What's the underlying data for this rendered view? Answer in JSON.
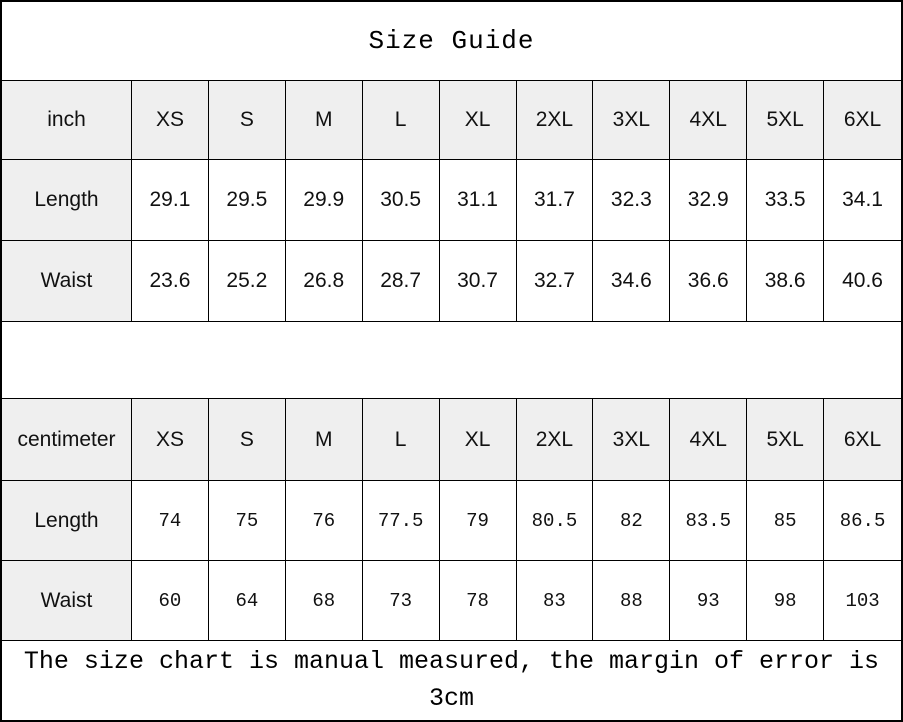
{
  "title": "Size Guide",
  "footer": {
    "text": "The size chart is manual measured, the margin of error is 3cm"
  },
  "colors": {
    "cell_shade": "#efefef",
    "border": "#000000",
    "background": "#ffffff",
    "text": "#111111"
  },
  "chart_data": [
    {
      "type": "table",
      "title": "Size Guide",
      "unit": "inch",
      "columns": [
        "inch",
        "XS",
        "S",
        "M",
        "L",
        "XL",
        "2XL",
        "3XL",
        "4XL",
        "5XL",
        "6XL"
      ],
      "rows": [
        {
          "label": "Length",
          "values": [
            29.1,
            29.5,
            29.9,
            30.5,
            31.1,
            31.7,
            32.3,
            32.9,
            33.5,
            34.1
          ]
        },
        {
          "label": "Waist",
          "values": [
            23.6,
            25.2,
            26.8,
            28.7,
            30.7,
            32.7,
            34.6,
            36.6,
            38.6,
            40.6
          ]
        }
      ]
    },
    {
      "type": "table",
      "title": "Size Guide",
      "unit": "centimeter",
      "columns": [
        "centimeter",
        "XS",
        "S",
        "M",
        "L",
        "XL",
        "2XL",
        "3XL",
        "4XL",
        "5XL",
        "6XL"
      ],
      "rows": [
        {
          "label": "Length",
          "values": [
            74,
            75,
            76,
            77.5,
            79,
            80.5,
            82,
            83.5,
            85,
            86.5
          ]
        },
        {
          "label": "Waist",
          "values": [
            60,
            64,
            68,
            73,
            78,
            83,
            88,
            93,
            98,
            103
          ]
        }
      ]
    }
  ]
}
